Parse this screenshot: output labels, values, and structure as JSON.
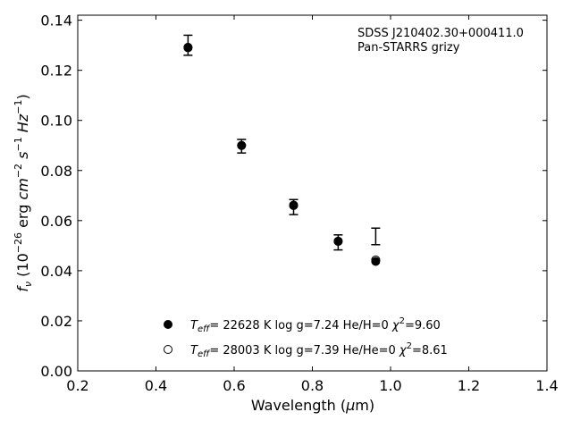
{
  "chart_data": {
    "type": "scatter",
    "title": "",
    "xlabel": "Wavelength (μm)",
    "ylabel": "f_ν (10^-26 erg cm^-2 s^-1 Hz^-1)",
    "xlim": [
      0.2,
      1.4
    ],
    "ylim": [
      0.0,
      0.142
    ],
    "xticks": [
      "0.2",
      "0.4",
      "0.6",
      "0.8",
      "1.0",
      "1.2",
      "1.4"
    ],
    "yticks": [
      "0.00",
      "0.02",
      "0.04",
      "0.06",
      "0.08",
      "0.10",
      "0.12",
      "0.14"
    ],
    "grid": false,
    "annotation_lines": [
      "SDSS J210402.30+000411.0",
      "Pan-STARRS grizy"
    ],
    "observed": {
      "name": "",
      "x": [
        0.482,
        0.619,
        0.752,
        0.866,
        0.962
      ],
      "y": [
        0.13,
        0.0897,
        0.0654,
        0.0513,
        0.0537
      ],
      "err": [
        0.004,
        0.0027,
        0.003,
        0.003,
        0.0033
      ]
    },
    "series": [
      {
        "name": "T_eff= 22628 K  log g=7.24  He/H=0  χ²=9.60",
        "marker": "filled",
        "x": [
          0.482,
          0.619,
          0.752,
          0.866,
          0.962
        ],
        "y": [
          0.129,
          0.09,
          0.066,
          0.0517,
          0.0437
        ]
      },
      {
        "name": "T_eff= 28003 K  log g=7.39  He/He=0  χ²=8.61",
        "marker": "open",
        "x": [
          0.482,
          0.619,
          0.752,
          0.866,
          0.962
        ],
        "y": [
          0.1292,
          0.09,
          0.0662,
          0.0518,
          0.0443
        ]
      }
    ],
    "legend_position": "bottom-center",
    "colors": {
      "marker": "#000000",
      "axes": "#000000"
    }
  }
}
